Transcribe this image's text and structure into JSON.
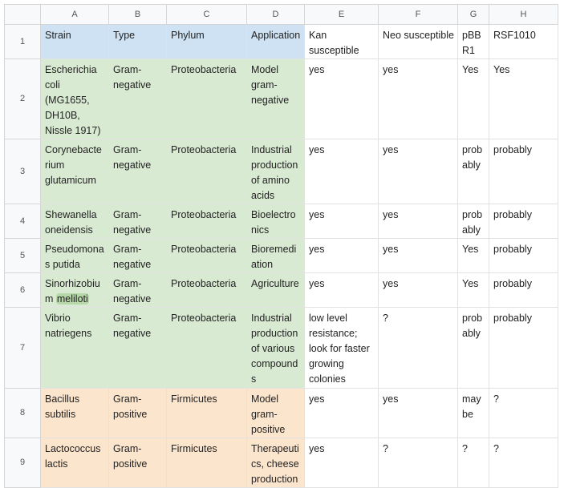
{
  "sheet": {
    "columns": [
      "A",
      "B",
      "C",
      "D",
      "E",
      "F",
      "G",
      "H"
    ],
    "rows": [
      {
        "number": "1",
        "fill": "#cfe2f3",
        "cells": [
          "Strain",
          "Type",
          "Phylum",
          "Application",
          "Kan susceptible",
          "Neo susceptible",
          "pBBR1",
          "RSF1010"
        ]
      },
      {
        "number": "2",
        "fill": "#d9ead3",
        "cells": [
          "Escherichia coli (MG1655, DH10B, Nissle 1917)",
          "Gram-negative",
          "Proteobacteria",
          "Model gram-negative",
          "yes",
          "yes",
          "Yes",
          "Yes"
        ]
      },
      {
        "number": "3",
        "fill": "#d9ead3",
        "cells": [
          "Corynebacterium glutamicum",
          "Gram-negative",
          "Proteobacteria",
          "Industrial production of amino acids",
          "yes",
          "yes",
          "probably",
          "probably"
        ]
      },
      {
        "number": "4",
        "fill": "#d9ead3",
        "cells": [
          "Shewanella oneidensis",
          "Gram-negative",
          "Proteobacteria",
          "Bioelectronics",
          "yes",
          "yes",
          "probably",
          "probably"
        ]
      },
      {
        "number": "5",
        "fill": "#d9ead3",
        "cells": [
          "Pseudomonas putida",
          "Gram-negative",
          "Proteobacteria",
          "Bioremediation",
          "yes",
          "yes",
          "Yes",
          "probably"
        ]
      },
      {
        "number": "6",
        "fill": "#d9ead3",
        "cells": [
          [
            {
              "text": "Sinorhizobium "
            },
            {
              "text": "meliloti",
              "highlight": "#b6d7a8"
            }
          ],
          "Gram-negative",
          "Proteobacteria",
          "Agriculture",
          "yes",
          "yes",
          "Yes",
          "probably"
        ]
      },
      {
        "number": "7",
        "fill": "#d9ead3",
        "cells": [
          "Vibrio natriegens",
          "Gram-negative",
          "Proteobacteria",
          "Industrial production of various compounds",
          "low level resistance; look for faster growing colonies",
          "?",
          "probably",
          "probably"
        ]
      },
      {
        "number": "8",
        "fill": "#fce5cd",
        "cells": [
          "Bacillus subtilis",
          "Gram-positive",
          "Firmicutes",
          "Model gram-positive",
          "yes",
          "yes",
          "maybe",
          "?"
        ]
      },
      {
        "number": "9",
        "fill": "#fce5cd",
        "cells": [
          "Lactococcus lactis",
          "Gram-positive",
          "Firmicutes",
          "Therapeutics, cheese production",
          "yes",
          "?",
          "?",
          "?"
        ]
      }
    ]
  }
}
